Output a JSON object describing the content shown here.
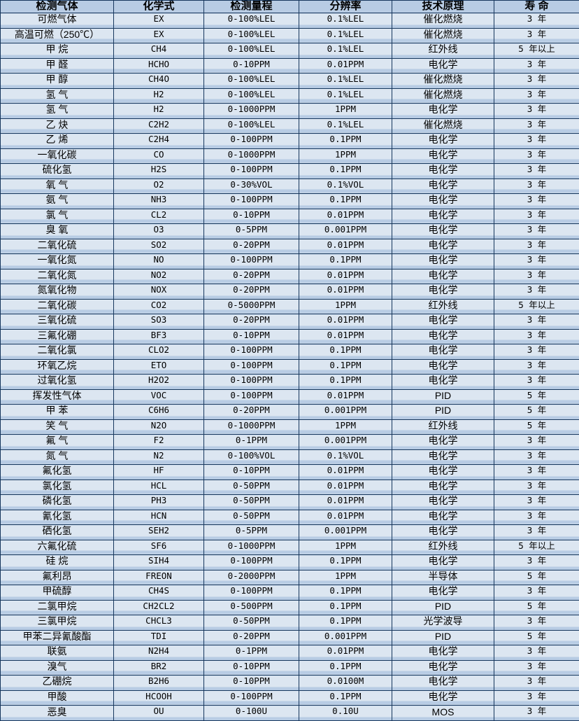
{
  "colors": {
    "header_bg": "#b8cce4",
    "row_bg": "#dce6f1",
    "row_stripe": "#b8cce4",
    "border": "#17375d",
    "text": "#000000"
  },
  "table": {
    "headers": [
      "检测气体",
      "化学式",
      "检测量程",
      "分辨率",
      "技术原理",
      "寿 命"
    ],
    "rows": [
      [
        "可燃气体",
        "EX",
        "0-100%LEL",
        "0.1%LEL",
        "催化燃烧",
        "3 年"
      ],
      [
        "高温可燃（250℃）",
        "EX",
        "0-100%LEL",
        "0.1%LEL",
        "催化燃烧",
        "3 年"
      ],
      [
        "甲 烷",
        "CH4",
        "0-100%LEL",
        "0.1%LEL",
        "红外线",
        "5 年以上"
      ],
      [
        "甲 醛",
        "HCHO",
        "0-10PPM",
        "0.01PPM",
        "电化学",
        "3 年"
      ],
      [
        "甲 醇",
        "CH4O",
        "0-100%LEL",
        "0.1%LEL",
        "催化燃烧",
        "3 年"
      ],
      [
        "氢 气",
        "H2",
        "0-100%LEL",
        "0.1%LEL",
        "催化燃烧",
        "3 年"
      ],
      [
        "氢 气",
        "H2",
        "0-1000PPM",
        "1PPM",
        "电化学",
        "3 年"
      ],
      [
        "乙 炔",
        "C2H2",
        "0-100%LEL",
        "0.1%LEL",
        "催化燃烧",
        "3 年"
      ],
      [
        "乙 烯",
        "C2H4",
        "0-100PPM",
        "0.1PPM",
        "电化学",
        "3 年"
      ],
      [
        "一氧化碳",
        "CO",
        "0-1000PPM",
        "1PPM",
        "电化学",
        "3 年"
      ],
      [
        "硫化氢",
        "H2S",
        "0-100PPM",
        "0.1PPM",
        "电化学",
        "3 年"
      ],
      [
        "氧 气",
        "O2",
        "0-30%VOL",
        "0.1%VOL",
        "电化学",
        "3 年"
      ],
      [
        "氨 气",
        "NH3",
        "0-100PPM",
        "0.1PPM",
        "电化学",
        "3 年"
      ],
      [
        "氯 气",
        "CL2",
        "0-10PPM",
        "0.01PPM",
        "电化学",
        "3 年"
      ],
      [
        "臭 氧",
        "O3",
        "0-5PPM",
        "0.001PPM",
        "电化学",
        "3 年"
      ],
      [
        "二氧化硫",
        "SO2",
        "0-20PPM",
        "0.01PPM",
        "电化学",
        "3 年"
      ],
      [
        "一氧化氮",
        "NO",
        "0-100PPM",
        "0.1PPM",
        "电化学",
        "3 年"
      ],
      [
        "二氧化氮",
        "NO2",
        "0-20PPM",
        "0.01PPM",
        "电化学",
        "3 年"
      ],
      [
        "氮氧化物",
        "NOX",
        "0-20PPM",
        "0.01PPM",
        "电化学",
        "3 年"
      ],
      [
        "二氧化碳",
        "CO2",
        "0-5000PPM",
        "1PPM",
        "红外线",
        "5 年以上"
      ],
      [
        "三氧化硫",
        "SO3",
        "0-20PPM",
        "0.01PPM",
        "电化学",
        "3 年"
      ],
      [
        "三氟化硼",
        "BF3",
        "0-10PPM",
        "0.01PPM",
        "电化学",
        "3 年"
      ],
      [
        "二氧化氯",
        "CLO2",
        "0-100PPM",
        "0.1PPM",
        "电化学",
        "3 年"
      ],
      [
        "环氧乙烷",
        "ETO",
        "0-100PPM",
        "0.1PPM",
        "电化学",
        "3 年"
      ],
      [
        "过氧化氢",
        "H2O2",
        "0-100PPM",
        "0.1PPM",
        "电化学",
        "3 年"
      ],
      [
        "挥发性气体",
        "VOC",
        "0-100PPM",
        "0.01PPM",
        "PID",
        "5 年"
      ],
      [
        "甲 苯",
        "C6H6",
        "0-20PPM",
        "0.001PPM",
        "PID",
        "5 年"
      ],
      [
        "笑 气",
        "N2O",
        "0-1000PPM",
        "1PPM",
        "红外线",
        "5 年"
      ],
      [
        "氟 气",
        "F2",
        "0-1PPM",
        "0.001PPM",
        "电化学",
        "3 年"
      ],
      [
        "氮 气",
        "N2",
        "0-100%VOL",
        "0.1%VOL",
        "电化学",
        "3 年"
      ],
      [
        "氟化氢",
        "HF",
        "0-10PPM",
        "0.01PPM",
        "电化学",
        "3 年"
      ],
      [
        "氯化氢",
        "HCL",
        "0-50PPM",
        "0.01PPM",
        "电化学",
        "3 年"
      ],
      [
        "磷化氢",
        "PH3",
        "0-50PPM",
        "0.01PPM",
        "电化学",
        "3 年"
      ],
      [
        "氰化氢",
        "HCN",
        "0-50PPM",
        "0.01PPM",
        "电化学",
        "3 年"
      ],
      [
        "硒化氢",
        "SEH2",
        "0-5PPM",
        "0.001PPM",
        "电化学",
        "3 年"
      ],
      [
        "六氟化硫",
        "SF6",
        "0-1000PPM",
        "1PPM",
        "红外线",
        "5 年以上"
      ],
      [
        "硅 烷",
        "SIH4",
        "0-100PPM",
        "0.1PPM",
        "电化学",
        "3 年"
      ],
      [
        "氟利昂",
        "FREON",
        "0-2000PPM",
        "1PPM",
        "半导体",
        "5 年"
      ],
      [
        "甲硫醇",
        "CH4S",
        "0-100PPM",
        "0.1PPM",
        "电化学",
        "3 年"
      ],
      [
        "二氯甲烷",
        "CH2CL2",
        "0-500PPM",
        "0.1PPM",
        "PID",
        "5 年"
      ],
      [
        "三氯甲烷",
        "CHCL3",
        "0-50PPM",
        "0.1PPM",
        "光学波导",
        "3 年"
      ],
      [
        "甲苯二异氰酸酯",
        "TDI",
        "0-20PPM",
        "0.001PPM",
        "PID",
        "5 年"
      ],
      [
        "联氨",
        "N2H4",
        "0-1PPM",
        "0.01PPM",
        "电化学",
        "3 年"
      ],
      [
        "溴气",
        "BR2",
        "0-10PPM",
        "0.1PPM",
        "电化学",
        "3 年"
      ],
      [
        "乙硼烷",
        "B2H6",
        "0-10PPM",
        "0.0100M",
        "电化学",
        "3 年"
      ],
      [
        "甲酸",
        "HCOOH",
        "0-100PPM",
        "0.1PPM",
        "电化学",
        "3 年"
      ],
      [
        "恶臭",
        "OU",
        "0-100U",
        "0.10U",
        "MOS",
        "3 年"
      ]
    ]
  }
}
